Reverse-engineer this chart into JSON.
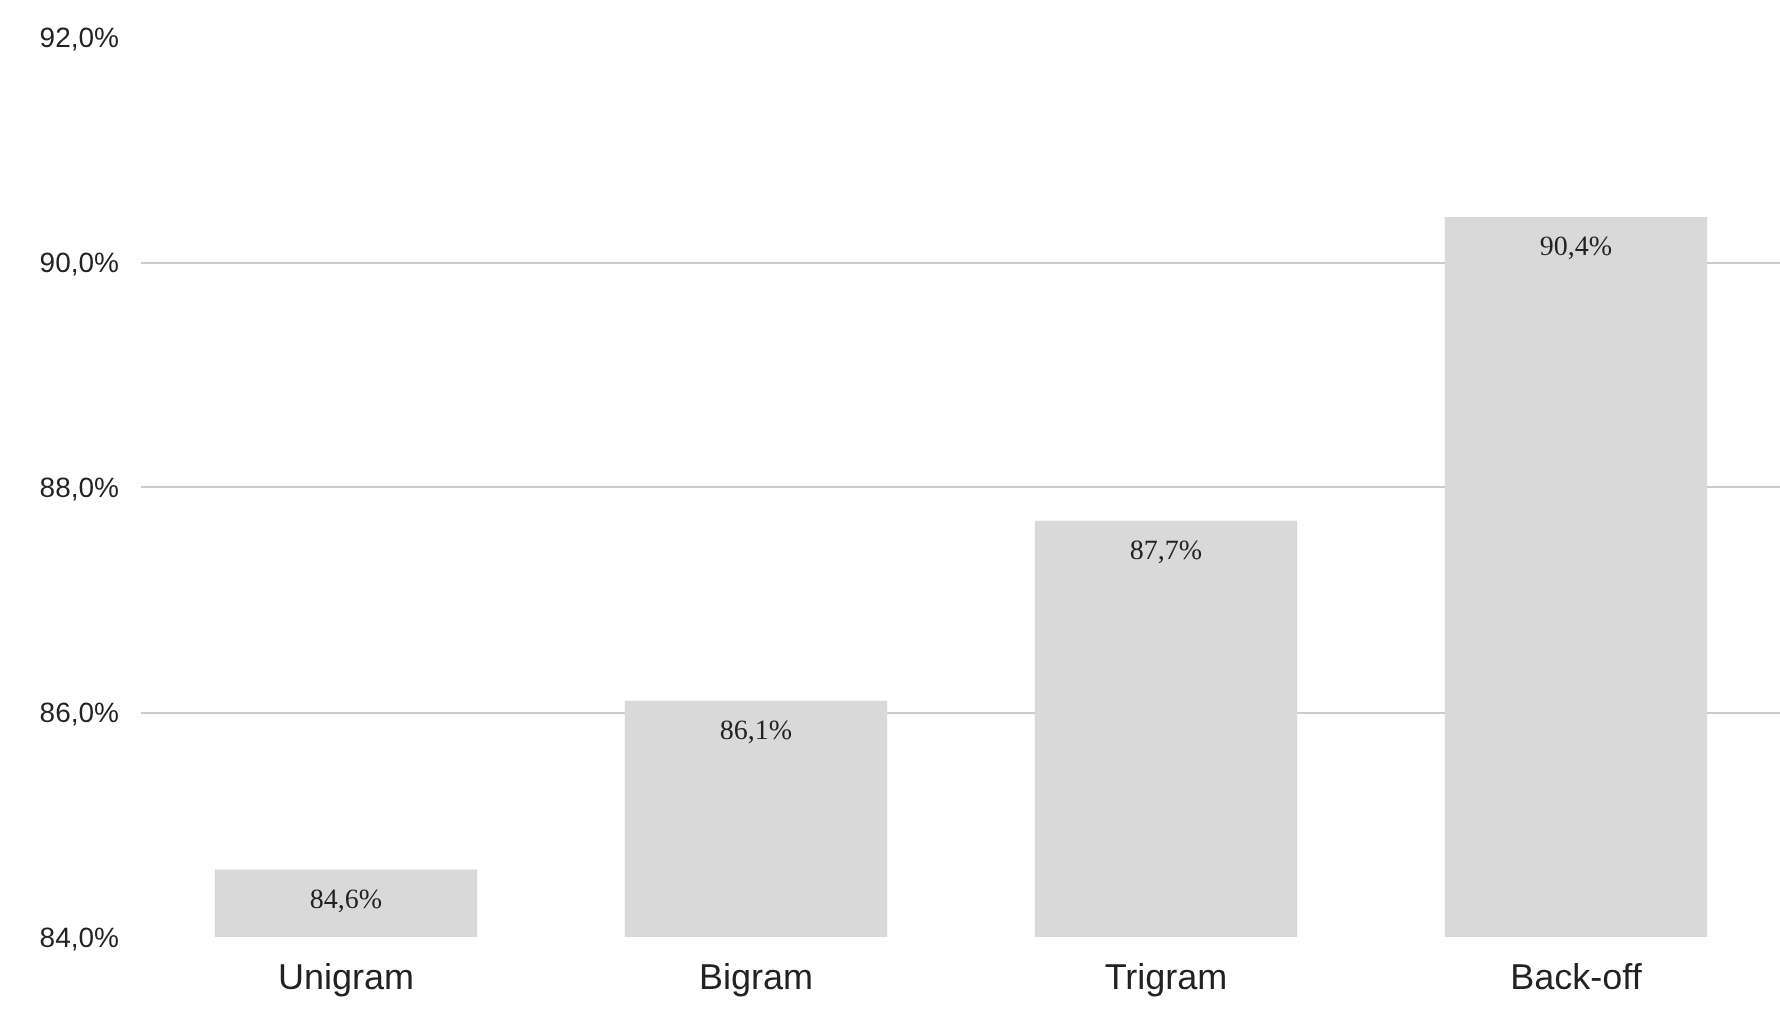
{
  "chart_data": {
    "type": "bar",
    "categories": [
      "Unigram",
      "Bigram",
      "Trigram",
      "Back-off"
    ],
    "values": [
      84.6,
      86.1,
      87.7,
      90.4
    ],
    "value_labels": [
      "84,6%",
      "86,1%",
      "87,7%",
      "90,4%"
    ],
    "color": "#d9d9d9",
    "ylim": [
      84,
      92
    ],
    "yticks": [
      {
        "value": 84,
        "label": "84,0%"
      },
      {
        "value": 86,
        "label": "86,0%"
      },
      {
        "value": 88,
        "label": "88,0%"
      },
      {
        "value": 90,
        "label": "90,0%"
      },
      {
        "value": 92,
        "label": "92,0%"
      }
    ],
    "grid": "y"
  }
}
